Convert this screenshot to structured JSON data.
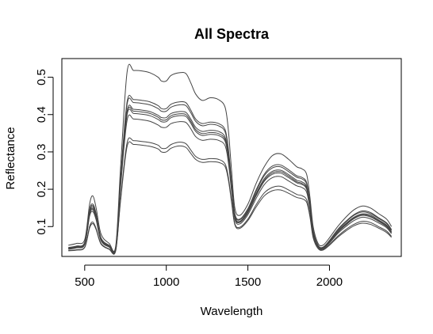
{
  "chart_data": {
    "type": "line",
    "title": "All Spectra",
    "xlabel": "Wavelength",
    "ylabel": "Reflectance",
    "xlim": [
      360,
      2440
    ],
    "ylim": [
      0.02,
      0.55
    ],
    "x_ticks": [
      500,
      1000,
      1500,
      2000
    ],
    "y_ticks": [
      0.1,
      0.2,
      0.3,
      0.4,
      0.5
    ],
    "grid": false,
    "legend": "none",
    "line_color": "#444444",
    "x": [
      400,
      450,
      500,
      530,
      550,
      570,
      600,
      650,
      690,
      720,
      760,
      800,
      850,
      900,
      950,
      970,
      1000,
      1030,
      1080,
      1120,
      1150,
      1180,
      1220,
      1270,
      1320,
      1360,
      1380,
      1400,
      1420,
      1450,
      1500,
      1550,
      1600,
      1650,
      1700,
      1750,
      1800,
      1830,
      1860,
      1880,
      1900,
      1930,
      1960,
      2000,
      2050,
      2100,
      2150,
      2200,
      2250,
      2300,
      2350,
      2380
    ],
    "series": [
      {
        "values": [
          0.05,
          0.055,
          0.065,
          0.16,
          0.182,
          0.15,
          0.08,
          0.055,
          0.048,
          0.26,
          0.515,
          0.518,
          0.517,
          0.512,
          0.5,
          0.49,
          0.49,
          0.505,
          0.512,
          0.51,
          0.485,
          0.455,
          0.438,
          0.445,
          0.44,
          0.42,
          0.36,
          0.25,
          0.15,
          0.13,
          0.16,
          0.215,
          0.26,
          0.29,
          0.295,
          0.28,
          0.26,
          0.255,
          0.24,
          0.18,
          0.1,
          0.055,
          0.05,
          0.07,
          0.1,
          0.125,
          0.145,
          0.155,
          0.15,
          0.135,
          0.12,
          0.1
        ]
      },
      {
        "values": [
          0.044,
          0.048,
          0.058,
          0.145,
          0.16,
          0.135,
          0.07,
          0.05,
          0.044,
          0.23,
          0.435,
          0.44,
          0.438,
          0.434,
          0.424,
          0.416,
          0.416,
          0.428,
          0.434,
          0.432,
          0.412,
          0.388,
          0.376,
          0.38,
          0.376,
          0.36,
          0.31,
          0.22,
          0.135,
          0.12,
          0.148,
          0.198,
          0.24,
          0.262,
          0.265,
          0.252,
          0.236,
          0.232,
          0.218,
          0.165,
          0.09,
          0.05,
          0.045,
          0.063,
          0.092,
          0.114,
          0.132,
          0.142,
          0.138,
          0.124,
          0.11,
          0.092
        ]
      },
      {
        "values": [
          0.043,
          0.047,
          0.057,
          0.142,
          0.156,
          0.132,
          0.068,
          0.049,
          0.043,
          0.226,
          0.428,
          0.432,
          0.43,
          0.426,
          0.416,
          0.409,
          0.409,
          0.42,
          0.426,
          0.424,
          0.405,
          0.382,
          0.37,
          0.374,
          0.37,
          0.354,
          0.305,
          0.216,
          0.132,
          0.118,
          0.145,
          0.194,
          0.236,
          0.257,
          0.26,
          0.247,
          0.232,
          0.228,
          0.214,
          0.162,
          0.088,
          0.049,
          0.044,
          0.062,
          0.09,
          0.112,
          0.13,
          0.139,
          0.135,
          0.122,
          0.108,
          0.09
        ]
      },
      {
        "values": [
          0.042,
          0.046,
          0.055,
          0.138,
          0.152,
          0.128,
          0.066,
          0.048,
          0.042,
          0.22,
          0.41,
          0.414,
          0.412,
          0.408,
          0.398,
          0.392,
          0.392,
          0.403,
          0.408,
          0.406,
          0.388,
          0.366,
          0.355,
          0.358,
          0.355,
          0.34,
          0.293,
          0.208,
          0.128,
          0.114,
          0.141,
          0.188,
          0.228,
          0.248,
          0.251,
          0.239,
          0.224,
          0.22,
          0.207,
          0.157,
          0.085,
          0.048,
          0.043,
          0.06,
          0.087,
          0.108,
          0.125,
          0.134,
          0.131,
          0.118,
          0.104,
          0.087
        ]
      },
      {
        "values": [
          0.041,
          0.045,
          0.054,
          0.135,
          0.148,
          0.125,
          0.065,
          0.047,
          0.041,
          0.218,
          0.405,
          0.409,
          0.407,
          0.403,
          0.393,
          0.386,
          0.386,
          0.397,
          0.402,
          0.4,
          0.382,
          0.36,
          0.349,
          0.352,
          0.349,
          0.334,
          0.288,
          0.205,
          0.126,
          0.112,
          0.139,
          0.185,
          0.224,
          0.244,
          0.247,
          0.235,
          0.22,
          0.216,
          0.203,
          0.154,
          0.084,
          0.047,
          0.042,
          0.059,
          0.085,
          0.106,
          0.123,
          0.132,
          0.128,
          0.116,
          0.102,
          0.085
        ]
      },
      {
        "values": [
          0.04,
          0.044,
          0.053,
          0.132,
          0.145,
          0.122,
          0.064,
          0.046,
          0.04,
          0.214,
          0.4,
          0.403,
          0.401,
          0.397,
          0.387,
          0.381,
          0.381,
          0.392,
          0.397,
          0.395,
          0.377,
          0.355,
          0.344,
          0.347,
          0.344,
          0.329,
          0.284,
          0.202,
          0.124,
          0.111,
          0.137,
          0.182,
          0.221,
          0.24,
          0.243,
          0.231,
          0.217,
          0.213,
          0.2,
          0.152,
          0.083,
          0.046,
          0.041,
          0.058,
          0.084,
          0.104,
          0.121,
          0.13,
          0.126,
          0.114,
          0.1,
          0.084
        ]
      },
      {
        "values": [
          0.039,
          0.043,
          0.052,
          0.128,
          0.14,
          0.118,
          0.062,
          0.045,
          0.039,
          0.206,
          0.385,
          0.388,
          0.386,
          0.382,
          0.372,
          0.366,
          0.366,
          0.376,
          0.381,
          0.379,
          0.362,
          0.341,
          0.331,
          0.334,
          0.331,
          0.317,
          0.273,
          0.195,
          0.12,
          0.107,
          0.132,
          0.175,
          0.212,
          0.231,
          0.234,
          0.222,
          0.209,
          0.205,
          0.192,
          0.146,
          0.08,
          0.045,
          0.04,
          0.056,
          0.081,
          0.1,
          0.116,
          0.125,
          0.121,
          0.11,
          0.097,
          0.081
        ]
      },
      {
        "values": [
          0.036,
          0.038,
          0.045,
          0.1,
          0.112,
          0.095,
          0.055,
          0.04,
          0.036,
          0.175,
          0.325,
          0.33,
          0.328,
          0.325,
          0.318,
          0.31,
          0.31,
          0.32,
          0.326,
          0.322,
          0.305,
          0.288,
          0.28,
          0.282,
          0.28,
          0.268,
          0.233,
          0.17,
          0.108,
          0.098,
          0.12,
          0.158,
          0.19,
          0.205,
          0.208,
          0.198,
          0.186,
          0.183,
          0.172,
          0.132,
          0.073,
          0.042,
          0.038,
          0.052,
          0.074,
          0.092,
          0.106,
          0.114,
          0.111,
          0.1,
          0.088,
          0.074
        ]
      },
      {
        "values": [
          0.035,
          0.037,
          0.044,
          0.096,
          0.108,
          0.092,
          0.053,
          0.039,
          0.035,
          0.17,
          0.315,
          0.32,
          0.318,
          0.315,
          0.308,
          0.3,
          0.3,
          0.31,
          0.316,
          0.312,
          0.296,
          0.28,
          0.272,
          0.274,
          0.272,
          0.261,
          0.226,
          0.165,
          0.105,
          0.095,
          0.116,
          0.152,
          0.182,
          0.196,
          0.198,
          0.189,
          0.178,
          0.175,
          0.165,
          0.127,
          0.07,
          0.041,
          0.037,
          0.05,
          0.071,
          0.088,
          0.102,
          0.109,
          0.106,
          0.096,
          0.084,
          0.071
        ]
      }
    ]
  }
}
